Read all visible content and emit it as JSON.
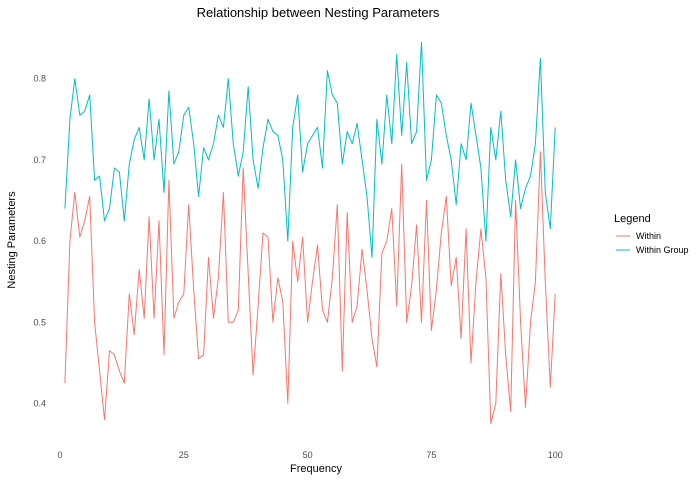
{
  "chart_data": {
    "type": "line",
    "title": "Relationship between Nesting Parameters",
    "xlabel": "Frequency",
    "ylabel": "Nesting Parameters",
    "xlim": [
      -1,
      105
    ],
    "ylim": [
      0.355,
      0.86
    ],
    "x_ticks": [
      0,
      25,
      50,
      75,
      100
    ],
    "y_ticks": [
      0.4,
      0.5,
      0.6,
      0.7,
      0.8
    ],
    "grid": false,
    "legend": {
      "title": "Legend",
      "placement": "right"
    },
    "x": [
      1,
      2,
      3,
      4,
      5,
      6,
      7,
      8,
      9,
      10,
      11,
      12,
      13,
      14,
      15,
      16,
      17,
      18,
      19,
      20,
      21,
      22,
      23,
      24,
      25,
      26,
      27,
      28,
      29,
      30,
      31,
      32,
      33,
      34,
      35,
      36,
      37,
      38,
      39,
      40,
      41,
      42,
      43,
      44,
      45,
      46,
      47,
      48,
      49,
      50,
      51,
      52,
      53,
      54,
      55,
      56,
      57,
      58,
      59,
      60,
      61,
      62,
      63,
      64,
      65,
      66,
      67,
      68,
      69,
      70,
      71,
      72,
      73,
      74,
      75,
      76,
      77,
      78,
      79,
      80,
      81,
      82,
      83,
      84,
      85,
      86,
      87,
      88,
      89,
      90,
      91,
      92,
      93,
      94,
      95,
      96,
      97,
      98,
      99,
      100
    ],
    "series": [
      {
        "name": "Within",
        "color": "#F8766D",
        "values": [
          0.425,
          0.6,
          0.66,
          0.605,
          0.625,
          0.655,
          0.5,
          0.44,
          0.38,
          0.465,
          0.46,
          0.44,
          0.425,
          0.535,
          0.485,
          0.565,
          0.505,
          0.63,
          0.505,
          0.625,
          0.46,
          0.675,
          0.505,
          0.525,
          0.535,
          0.645,
          0.54,
          0.455,
          0.46,
          0.58,
          0.505,
          0.555,
          0.66,
          0.5,
          0.5,
          0.515,
          0.69,
          0.56,
          0.435,
          0.52,
          0.61,
          0.605,
          0.5,
          0.555,
          0.525,
          0.4,
          0.6,
          0.55,
          0.605,
          0.5,
          0.55,
          0.595,
          0.515,
          0.5,
          0.555,
          0.645,
          0.44,
          0.635,
          0.5,
          0.52,
          0.59,
          0.54,
          0.48,
          0.445,
          0.585,
          0.6,
          0.64,
          0.52,
          0.695,
          0.5,
          0.545,
          0.62,
          0.5,
          0.65,
          0.49,
          0.54,
          0.61,
          0.655,
          0.545,
          0.58,
          0.48,
          0.615,
          0.45,
          0.55,
          0.615,
          0.555,
          0.375,
          0.4,
          0.56,
          0.46,
          0.39,
          0.65,
          0.5,
          0.395,
          0.5,
          0.55,
          0.71,
          0.55,
          0.42,
          0.535
        ]
      },
      {
        "name": "Within Group",
        "color": "#00BFC4",
        "values": [
          0.64,
          0.75,
          0.8,
          0.755,
          0.76,
          0.78,
          0.675,
          0.68,
          0.625,
          0.64,
          0.69,
          0.685,
          0.625,
          0.695,
          0.725,
          0.74,
          0.7,
          0.775,
          0.7,
          0.75,
          0.66,
          0.785,
          0.695,
          0.71,
          0.755,
          0.765,
          0.72,
          0.655,
          0.715,
          0.7,
          0.72,
          0.755,
          0.74,
          0.8,
          0.72,
          0.68,
          0.71,
          0.79,
          0.7,
          0.665,
          0.715,
          0.75,
          0.735,
          0.73,
          0.7,
          0.6,
          0.74,
          0.78,
          0.685,
          0.72,
          0.73,
          0.74,
          0.69,
          0.81,
          0.78,
          0.77,
          0.695,
          0.735,
          0.72,
          0.745,
          0.7,
          0.655,
          0.58,
          0.75,
          0.695,
          0.78,
          0.72,
          0.83,
          0.73,
          0.82,
          0.72,
          0.735,
          0.845,
          0.675,
          0.7,
          0.78,
          0.77,
          0.73,
          0.7,
          0.645,
          0.72,
          0.7,
          0.77,
          0.73,
          0.69,
          0.6,
          0.74,
          0.7,
          0.76,
          0.675,
          0.63,
          0.7,
          0.64,
          0.665,
          0.68,
          0.72,
          0.825,
          0.66,
          0.615,
          0.74
        ]
      }
    ]
  }
}
